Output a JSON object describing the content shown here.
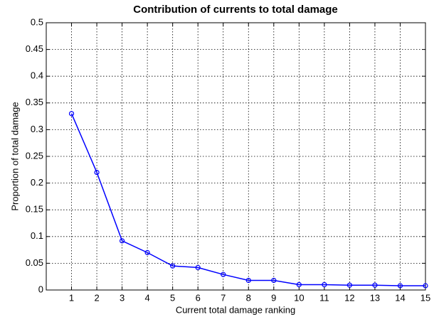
{
  "chart_data": {
    "type": "line",
    "title": "Contribution of currents to total damage",
    "x_label": "Current total damage ranking",
    "y_label": "Proportion of total damage",
    "x": [
      1,
      2,
      3,
      4,
      5,
      6,
      7,
      8,
      9,
      10,
      11,
      12,
      13,
      14,
      15
    ],
    "series": [
      {
        "name": "Proportion of total damage",
        "color": "#0000ff",
        "values": [
          0.33,
          0.22,
          0.092,
          0.07,
          0.045,
          0.042,
          0.029,
          0.018,
          0.018,
          0.01,
          0.01,
          0.009,
          0.009,
          0.008,
          0.008
        ]
      }
    ],
    "xlim": [
      0,
      15
    ],
    "xticks": [
      1,
      2,
      3,
      4,
      5,
      6,
      7,
      8,
      9,
      10,
      11,
      12,
      13,
      14,
      15
    ],
    "ylim": [
      0,
      0.5
    ],
    "yticks": [
      0,
      0.05,
      0.1,
      0.15,
      0.2,
      0.25,
      0.3,
      0.35,
      0.4,
      0.45,
      0.5
    ],
    "grid": true,
    "marker": "circle"
  }
}
